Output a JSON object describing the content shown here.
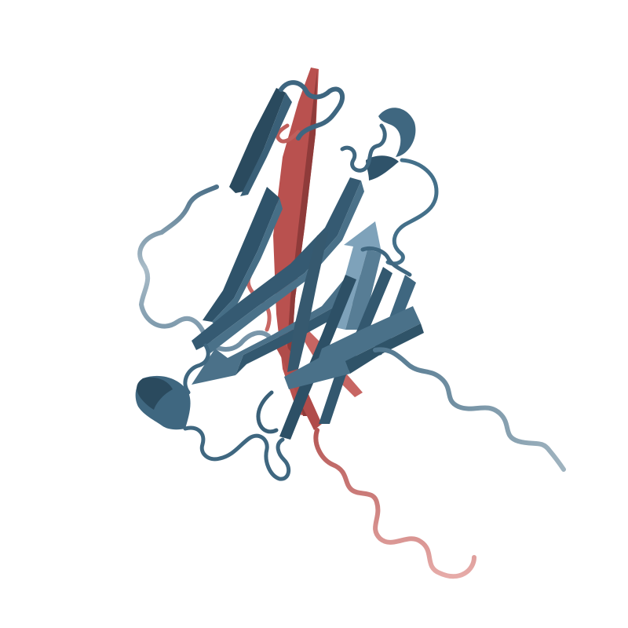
{
  "scene": {
    "subject": "protein-ribbon-structure",
    "background_color": "#ffffff"
  },
  "chains": [
    {
      "id": "chain-blue",
      "color": "#3f6780",
      "dark_color": "#2a4a5e",
      "light_color": "#6d92aa",
      "tail_color": "#a5b7c2"
    },
    {
      "id": "chain-red",
      "color": "#bb5a58",
      "dark_color": "#8e3c3b",
      "tail_color": "#e3a3a0"
    }
  ]
}
